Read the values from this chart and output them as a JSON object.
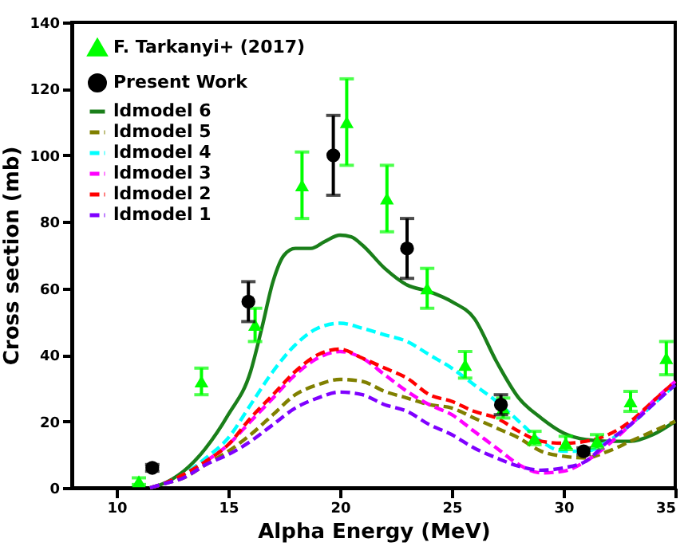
{
  "chart_data": {
    "type": "line",
    "xlabel": "Alpha Energy (MeV)",
    "ylabel": "Cross section (mb)",
    "xlim": [
      8,
      35
    ],
    "xticks": [
      10,
      15,
      20,
      25,
      30,
      35
    ],
    "ylim": [
      0,
      140
    ],
    "yticks": [
      0,
      20,
      40,
      60,
      80,
      100,
      120,
      140
    ],
    "grid": false,
    "legend": "top left",
    "series": [
      {
        "name": "F. Tarkanyi+ (2017)",
        "type": "scatter",
        "marker": "triangle",
        "color": "#00ff00",
        "x": [
          11,
          13.8,
          16.2,
          18.3,
          20.3,
          22.1,
          23.9,
          25.6,
          27.3,
          28.7,
          30.1,
          31.5,
          33,
          34.6
        ],
        "values": [
          2,
          32,
          49,
          91,
          110,
          87,
          60,
          37,
          24,
          15,
          13.5,
          14,
          26,
          39
        ],
        "errors": [
          1,
          4,
          5,
          10,
          13,
          10,
          6,
          4,
          3,
          2,
          2,
          2,
          3,
          5
        ]
      },
      {
        "name": "Present Work",
        "type": "scatter",
        "marker": "circle",
        "color": "#000000",
        "x": [
          11.6,
          15.9,
          19.7,
          23,
          27.2,
          30.9
        ],
        "values": [
          6,
          56,
          100,
          72,
          25,
          11
        ],
        "errors": [
          1,
          6,
          12,
          9,
          3,
          1
        ]
      },
      {
        "name": "ldmodel 6",
        "line_style": "solid",
        "color": "#1a7f1a",
        "x": [
          11.5,
          12,
          13,
          14,
          15,
          16,
          16.5,
          17,
          17.5,
          18,
          18.7,
          19.3,
          20,
          20.5,
          21,
          22,
          23,
          24,
          25,
          26,
          27,
          28,
          29,
          30,
          31,
          32,
          33,
          34,
          35
        ],
        "values": [
          0,
          1,
          5,
          12,
          22,
          35,
          48,
          62,
          70,
          72,
          72,
          74,
          76,
          75.5,
          73,
          66,
          61,
          59,
          56,
          51,
          38,
          27,
          21,
          16.5,
          14.5,
          14,
          14,
          16,
          20
        ]
      },
      {
        "name": "ldmodel 5",
        "line_style": "dashed",
        "color": "#808000",
        "x": [
          11.5,
          12,
          13,
          14,
          15,
          16,
          17,
          18,
          19,
          20,
          21,
          22,
          23,
          24,
          25,
          26,
          27,
          28,
          29,
          30,
          31,
          32,
          33,
          34,
          35
        ],
        "values": [
          0,
          1,
          3,
          7,
          11,
          16,
          22,
          28,
          31,
          32.6,
          32,
          29,
          27,
          25,
          24,
          21,
          18,
          15,
          11,
          9.5,
          9,
          11,
          14,
          17,
          20
        ]
      },
      {
        "name": "ldmodel 4",
        "line_style": "dashed",
        "color": "#00ffff",
        "x": [
          11.5,
          12,
          13,
          14,
          15,
          16,
          17,
          18,
          19,
          20,
          21,
          22,
          23,
          24,
          25,
          26,
          27,
          28,
          29,
          30,
          31,
          32,
          33,
          34,
          35
        ],
        "values": [
          0,
          1,
          4,
          9,
          15,
          25,
          35,
          43,
          48,
          49.5,
          48,
          46,
          44,
          40,
          36,
          31,
          26,
          20,
          14,
          11,
          11,
          14,
          19,
          25,
          31
        ]
      },
      {
        "name": "ldmodel 3",
        "line_style": "dashed",
        "color": "#ff00ff",
        "x": [
          14,
          15,
          16,
          17,
          18,
          19,
          20,
          21,
          22,
          23,
          24,
          25,
          26,
          27,
          28,
          29,
          30,
          31,
          32,
          33,
          34,
          35
        ],
        "values": [
          8,
          13,
          20,
          27,
          34,
          39,
          41,
          39,
          34,
          29,
          25,
          22,
          17,
          12,
          7,
          4.5,
          5,
          8,
          13,
          19,
          26,
          32
        ]
      },
      {
        "name": "ldmodel 2",
        "line_style": "dashed",
        "color": "#ff0000",
        "x": [
          11.5,
          12,
          13,
          14,
          15,
          16,
          17,
          18,
          19,
          20,
          21,
          22,
          23,
          24,
          25,
          26,
          27,
          28,
          29,
          30,
          31,
          32,
          33,
          34,
          35
        ],
        "values": [
          0,
          1,
          4,
          8,
          13,
          21,
          28,
          35,
          40,
          41.7,
          39,
          36,
          33,
          28,
          26,
          23,
          21,
          17,
          14,
          13.4,
          14,
          16,
          20,
          26,
          32
        ]
      },
      {
        "name": "ldmodel 1",
        "line_style": "dashed",
        "color": "#7f00ff",
        "x": [
          11.5,
          12,
          13,
          14,
          15,
          16,
          17,
          18,
          19,
          20,
          21,
          22,
          23,
          24,
          25,
          26,
          27,
          28,
          29,
          30,
          31,
          32,
          33,
          34,
          35
        ],
        "values": [
          0,
          1,
          3,
          7,
          10,
          14,
          19,
          24,
          27,
          28.8,
          28,
          25,
          23,
          19,
          16,
          12,
          9,
          6.5,
          5.3,
          6,
          8,
          14,
          19,
          25,
          31
        ]
      }
    ]
  }
}
